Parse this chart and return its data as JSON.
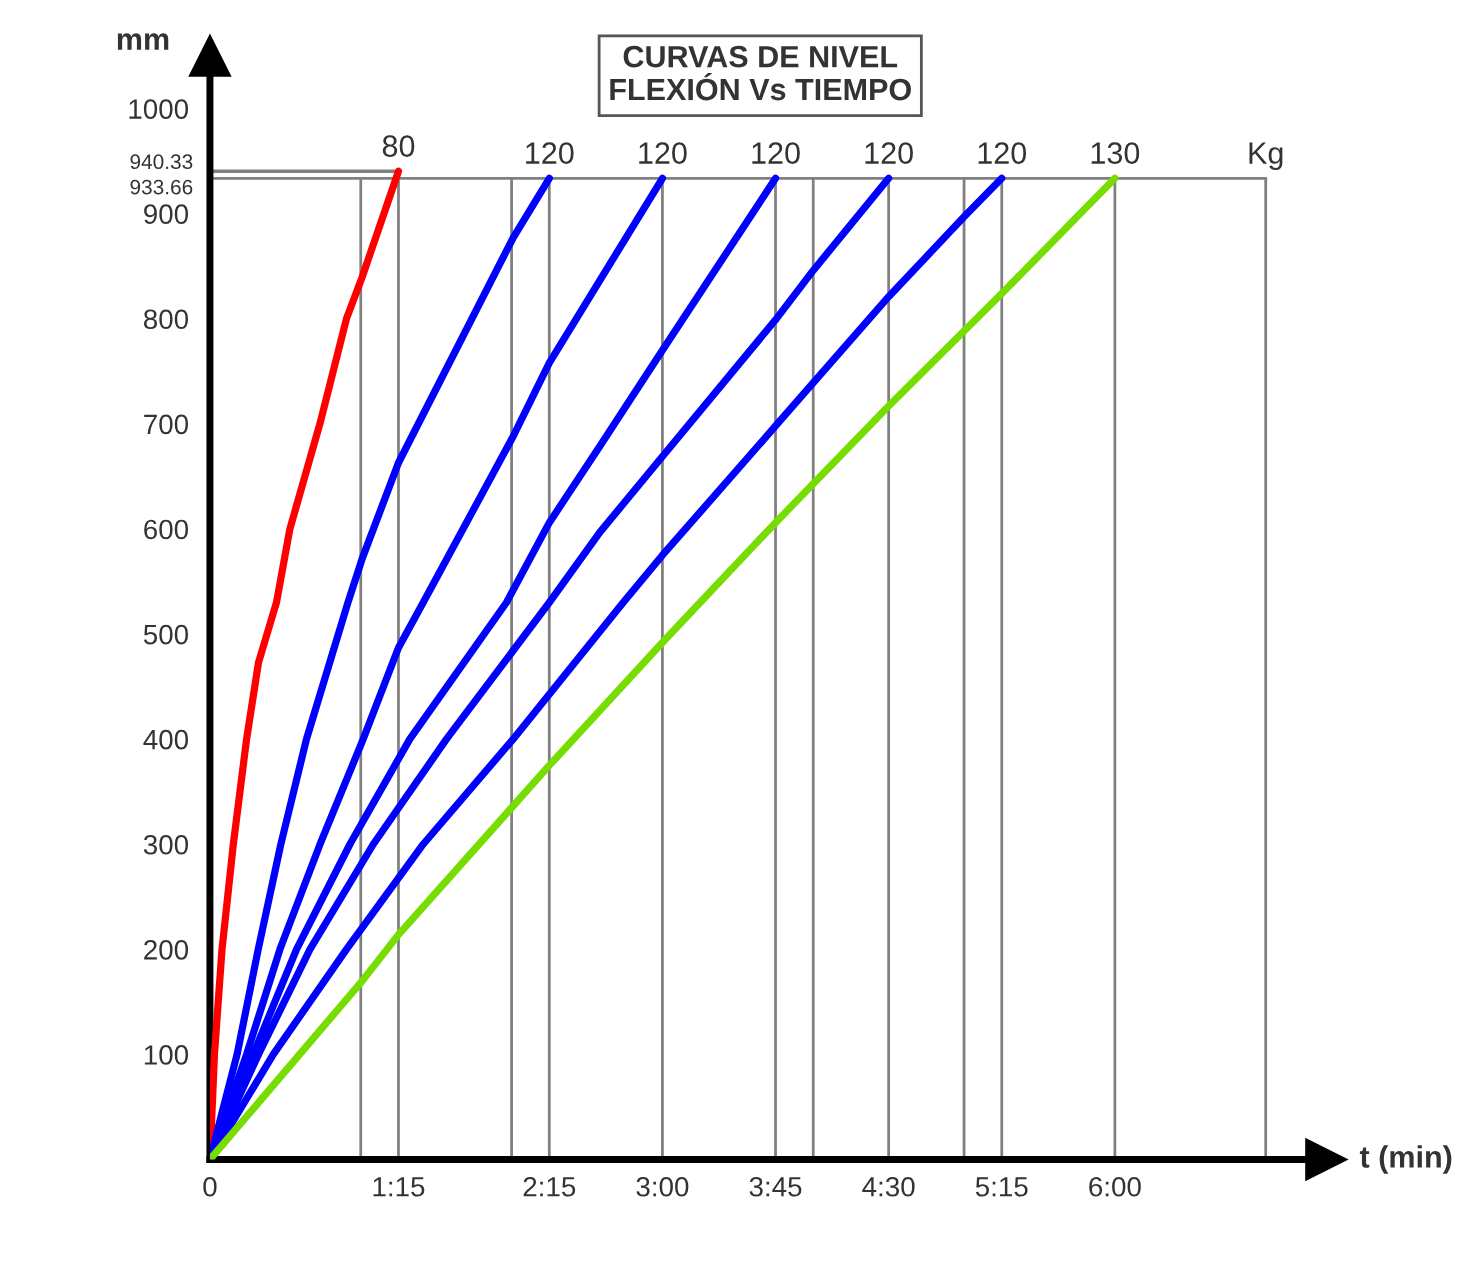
{
  "chart_data": {
    "type": "line",
    "title": "CURVAS DE NIVEL\nFLEXIÓN Vs TIEMPO",
    "xlabel": "t (min)",
    "ylabel": "mm",
    "xlim": [
      0,
      7.4
    ],
    "ylim": [
      0,
      1050
    ],
    "xticks": [
      0,
      {
        "value": 1.25,
        "label": "1:15"
      },
      {
        "value": 2.25,
        "label": "2:15"
      },
      {
        "value": 3,
        "label": "3:00"
      },
      {
        "value": 3.75,
        "label": "3:45"
      },
      {
        "value": 4.5,
        "label": "4:30"
      },
      {
        "value": 5.25,
        "label": "5:15"
      },
      {
        "value": 6,
        "label": "6:00"
      }
    ],
    "yticks": [
      100,
      200,
      300,
      400,
      500,
      600,
      700,
      800,
      900,
      933.66,
      940.33,
      1000
    ],
    "grid": false,
    "legend": false,
    "marker": "none",
    "line_style": "solid",
    "series": [
      {
        "color": "#ff0000",
        "x": [
          0,
          0.03,
          0.08,
          0.155,
          0.243,
          0.322,
          0.441,
          0.53,
          0.729,
          0.905,
          1.01,
          1.25
        ],
        "values": [
          0,
          100,
          200,
          300,
          400,
          473,
          530,
          600,
          700,
          800,
          840,
          940.33
        ]
      },
      {
        "color": "#0000ff",
        "x": [
          0,
          0.18,
          0.32,
          0.47,
          0.64,
          0.915,
          1.01,
          1.25,
          2.01,
          2.25
        ],
        "values": [
          0,
          100,
          200,
          300,
          400,
          530,
          572,
          663,
          877,
          933.66
        ]
      },
      {
        "color": "#0000ff",
        "x": [
          0,
          0.243,
          0.464,
          0.73,
          1.016,
          1.25,
          1.414,
          2.01,
          2.25,
          3.0
        ],
        "values": [
          0,
          100,
          200,
          300,
          400,
          487,
          530,
          688,
          758,
          933.66
        ]
      },
      {
        "color": "#0000ff",
        "x": [
          0,
          0.287,
          0.574,
          0.928,
          1.325,
          1.966,
          2.25,
          2.586,
          3.0,
          3.75
        ],
        "values": [
          0,
          100,
          200,
          300,
          400,
          530,
          606,
          679,
          770,
          933.66
        ]
      },
      {
        "color": "#0000ff",
        "x": [
          0,
          0.322,
          0.663,
          1.083,
          1.568,
          2.25,
          2.586,
          3.0,
          3.75,
          4.0,
          4.5
        ],
        "values": [
          0,
          100,
          200,
          300,
          400,
          530,
          597,
          669,
          799,
          846,
          933.66
        ]
      },
      {
        "color": "#0000ff",
        "x": [
          0,
          0.42,
          0.905,
          1.414,
          2.01,
          2.74,
          3.0,
          3.75,
          4.5,
          5.0,
          5.25
        ],
        "values": [
          0,
          100,
          200,
          300,
          400,
          530,
          575,
          698,
          821,
          897,
          933.66
        ]
      },
      {
        "color": "#77dd00",
        "x": [
          0,
          1.01,
          1.25,
          2.25,
          3.0,
          3.75,
          4.5,
          5.25,
          6.0
        ],
        "values": [
          0,
          170,
          214,
          375,
          492,
          606,
          717,
          824,
          933.66
        ]
      },
      {
        "color": "#808080",
        "x": [
          0,
          1.25
        ],
        "values": [
          940.33,
          940.33
        ]
      }
    ],
    "ref_lines": [
      {
        "axis": "y",
        "value": 933.66,
        "color": "#808080"
      },
      {
        "axis": "x",
        "value": 1,
        "color": "#808080"
      },
      {
        "axis": "x",
        "value": 1.25,
        "color": "#808080"
      },
      {
        "axis": "x",
        "value": 2,
        "color": "#808080"
      },
      {
        "axis": "x",
        "value": 2.25,
        "color": "#808080"
      },
      {
        "axis": "x",
        "value": 3,
        "color": "#808080"
      },
      {
        "axis": "x",
        "value": 3.75,
        "color": "#808080"
      },
      {
        "axis": "x",
        "value": 4,
        "color": "#808080"
      },
      {
        "axis": "x",
        "value": 4.5,
        "color": "#808080"
      },
      {
        "axis": "x",
        "value": 5,
        "color": "#808080"
      },
      {
        "axis": "x",
        "value": 5.25,
        "color": "#808080"
      },
      {
        "axis": "x",
        "value": 6,
        "color": "#808080"
      },
      {
        "axis": "x",
        "value": 7,
        "color": "#808080"
      }
    ],
    "annotations": [
      {
        "text": "80",
        "x": 1.25,
        "y": 940.33
      },
      {
        "text": "120",
        "x": 2.25,
        "y": 933.66
      },
      {
        "text": "120",
        "x": 3,
        "y": 933.66
      },
      {
        "text": "120",
        "x": 3.75,
        "y": 933.66
      },
      {
        "text": "120",
        "x": 4.5,
        "y": 933.66
      },
      {
        "text": "120",
        "x": 5.25,
        "y": 933.66
      },
      {
        "text": "130",
        "x": 6,
        "y": 933.66
      },
      {
        "text": "Kg",
        "x": 7,
        "y": 933.66
      }
    ]
  }
}
